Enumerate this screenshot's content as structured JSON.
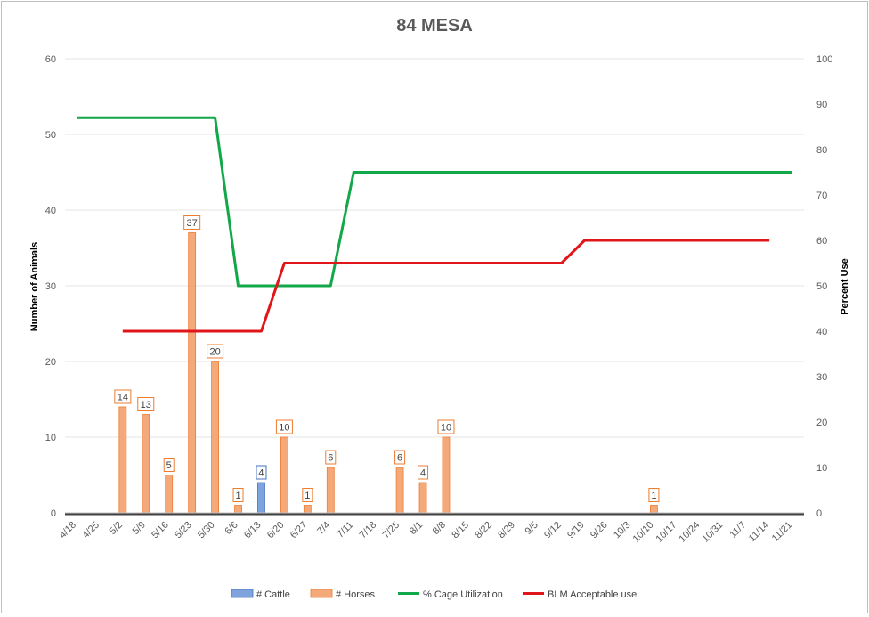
{
  "chart_data": {
    "type": "bar",
    "title": "84 MESA",
    "ylabel": "Number of Animals",
    "y2label": "Percent Use",
    "ylim": [
      0,
      60
    ],
    "y2lim": [
      0,
      100
    ],
    "yticks": [
      0,
      10,
      20,
      30,
      40,
      50,
      60
    ],
    "y2ticks": [
      0,
      10,
      20,
      30,
      40,
      50,
      60,
      70,
      80,
      90,
      100
    ],
    "grid": true,
    "legend_position": "bottom",
    "categories": [
      "4/18",
      "4/25",
      "5/2",
      "5/9",
      "5/16",
      "5/23",
      "5/30",
      "6/6",
      "6/13",
      "6/20",
      "6/27",
      "7/4",
      "7/11",
      "7/18",
      "7/25",
      "8/1",
      "8/8",
      "8/15",
      "8/22",
      "8/29",
      "9/5",
      "9/12",
      "9/19",
      "9/26",
      "10/3",
      "10/10",
      "10/17",
      "10/24",
      "10/31",
      "11/7",
      "11/14",
      "11/21"
    ],
    "series": [
      {
        "name": "# Cattle",
        "kind": "bar",
        "axis": "left",
        "color": "#4472c4",
        "fill": "#7fa3dc",
        "values": [
          null,
          null,
          null,
          null,
          null,
          null,
          null,
          null,
          4,
          null,
          null,
          null,
          null,
          null,
          null,
          null,
          null,
          null,
          null,
          null,
          null,
          null,
          null,
          null,
          null,
          null,
          null,
          null,
          null,
          null,
          null,
          null
        ]
      },
      {
        "name": "# Horses",
        "kind": "bar",
        "axis": "left",
        "color": "#ed7d31",
        "fill": "#f4a97a",
        "values": [
          null,
          null,
          14,
          13,
          5,
          37,
          20,
          1,
          null,
          10,
          1,
          6,
          null,
          null,
          6,
          4,
          10,
          null,
          null,
          null,
          null,
          null,
          null,
          null,
          null,
          1,
          null,
          null,
          null,
          null,
          null,
          null
        ]
      },
      {
        "name": "% Cage Utilization",
        "kind": "line",
        "axis": "right",
        "color": "#12a84a",
        "values": [
          87,
          87,
          87,
          87,
          87,
          87,
          87,
          50,
          50,
          50,
          50,
          50,
          75,
          75,
          75,
          75,
          75,
          75,
          75,
          75,
          75,
          75,
          75,
          75,
          75,
          75,
          75,
          75,
          75,
          75,
          75,
          75
        ]
      },
      {
        "name": "BLM Acceptable use",
        "kind": "line",
        "axis": "right",
        "color": "#e0161b",
        "values": [
          null,
          null,
          40,
          40,
          40,
          40,
          40,
          40,
          40,
          55,
          55,
          55,
          55,
          55,
          55,
          55,
          55,
          55,
          55,
          55,
          55,
          55,
          60,
          60,
          60,
          60,
          60,
          60,
          60,
          60,
          60,
          null
        ]
      }
    ]
  }
}
